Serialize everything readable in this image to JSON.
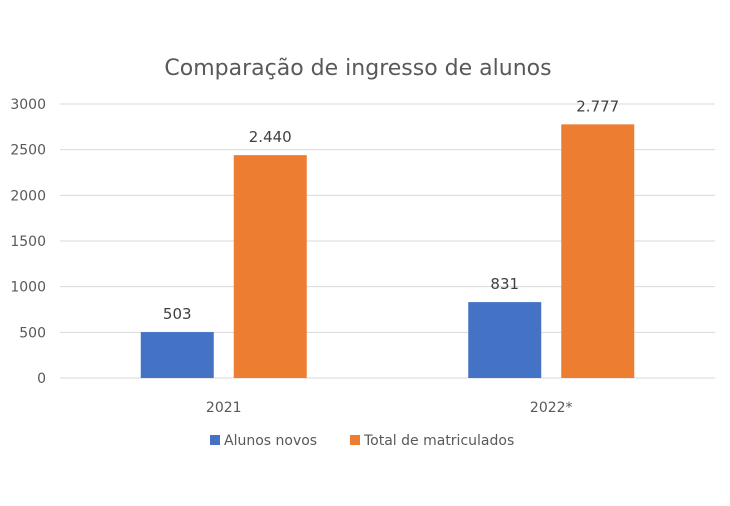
{
  "chart_data": {
    "type": "bar",
    "title": "Comparação de ingresso de alunos",
    "categories": [
      "2021",
      "2022*"
    ],
    "series": [
      {
        "name": "Alunos novos",
        "values": [
          503,
          831
        ],
        "labels": [
          "503",
          "831"
        ],
        "color": "#4472C4"
      },
      {
        "name": "Total de matriculados",
        "values": [
          2440,
          2777
        ],
        "labels": [
          "2.440",
          "2.777"
        ],
        "color": "#ED7D31"
      }
    ],
    "yticks": [
      "0",
      "500",
      "1000",
      "1500",
      "2000",
      "2500",
      "3000"
    ],
    "ylim": [
      0,
      3000
    ],
    "grid": true,
    "legend": "bottom",
    "xlabel": "",
    "ylabel": ""
  }
}
